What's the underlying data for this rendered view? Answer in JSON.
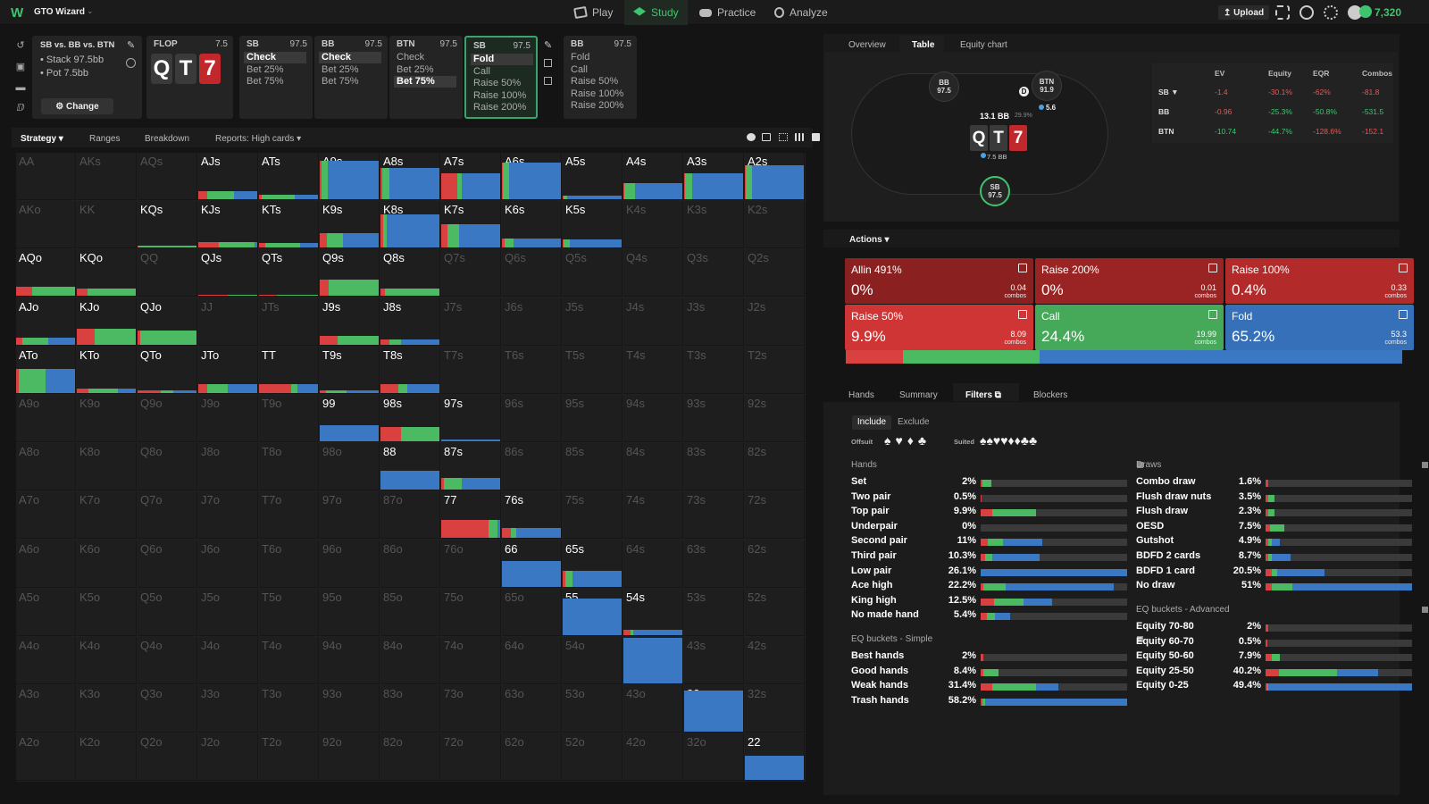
{
  "topnav": {
    "app_name": "GTO Wizard",
    "play": "Play",
    "study": "Study",
    "practice": "Practice",
    "analyze": "Analyze",
    "upload": "Upload",
    "credits": "7,320"
  },
  "spot": {
    "title": "SB vs. BB vs. BTN",
    "stack": "Stack 97.5bb",
    "pot": "Pot 7.5bb",
    "change": "Change"
  },
  "tree": [
    {
      "pos": "FLOP",
      "stack": "7.5",
      "cards": [
        "Q",
        "T",
        "7"
      ],
      "options": []
    },
    {
      "pos": "SB",
      "stack": "97.5",
      "options": [
        {
          "l": "Check",
          "on": true
        },
        {
          "l": "Bet 25%",
          "on": false
        },
        {
          "l": "Bet 75%",
          "on": false
        }
      ]
    },
    {
      "pos": "BB",
      "stack": "97.5",
      "options": [
        {
          "l": "Check",
          "on": true
        },
        {
          "l": "Bet 25%",
          "on": false
        },
        {
          "l": "Bet 75%",
          "on": false
        }
      ]
    },
    {
      "pos": "BTN",
      "stack": "97.5",
      "options": [
        {
          "l": "Check",
          "on": false
        },
        {
          "l": "Bet 25%",
          "on": false
        },
        {
          "l": "Bet 75%",
          "on": true
        }
      ]
    },
    {
      "pos": "SB",
      "stack": "97.5",
      "options": [
        {
          "l": "Fold",
          "on": true
        },
        {
          "l": "Call",
          "on": false
        },
        {
          "l": "Raise 50%",
          "on": false
        },
        {
          "l": "Raise 100%",
          "on": false
        },
        {
          "l": "Raise 200%",
          "on": false
        }
      ]
    },
    {
      "pos": "BB",
      "stack": "97.5",
      "options": [
        {
          "l": "Fold",
          "on": false
        },
        {
          "l": "Call",
          "on": false
        },
        {
          "l": "Raise 50%",
          "on": false
        },
        {
          "l": "Raise 100%",
          "on": false
        },
        {
          "l": "Raise 200%",
          "on": false
        }
      ]
    }
  ],
  "strategy_tabs": {
    "strategy": "Strategy",
    "ranges": "Ranges",
    "breakdown": "Breakdown",
    "reports": "Reports: High cards"
  },
  "colors": {
    "raise": "#d94040",
    "call": "#4cb963",
    "fold": "#3a78c4",
    "accent": "#3ec46d"
  },
  "grid": [
    [
      "AA",
      "AKs",
      "AQs",
      "AJs",
      "ATs",
      "A9s",
      "A8s",
      "A7s",
      "A6s",
      "A5s",
      "A4s",
      "A3s",
      "A2s"
    ],
    [
      "AKo",
      "KK",
      "KQs",
      "KJs",
      "KTs",
      "K9s",
      "K8s",
      "K7s",
      "K6s",
      "K5s",
      "K4s",
      "K3s",
      "K2s"
    ],
    [
      "AQo",
      "KQo",
      "QQ",
      "QJs",
      "QTs",
      "Q9s",
      "Q8s",
      "Q7s",
      "Q6s",
      "Q5s",
      "Q4s",
      "Q3s",
      "Q2s"
    ],
    [
      "AJo",
      "KJo",
      "QJo",
      "JJ",
      "JTs",
      "J9s",
      "J8s",
      "J7s",
      "J6s",
      "J5s",
      "J4s",
      "J3s",
      "J2s"
    ],
    [
      "ATo",
      "KTo",
      "QTo",
      "JTo",
      "TT",
      "T9s",
      "T8s",
      "T7s",
      "T6s",
      "T5s",
      "T4s",
      "T3s",
      "T2s"
    ],
    [
      "A9o",
      "K9o",
      "Q9o",
      "J9o",
      "T9o",
      "99",
      "98s",
      "97s",
      "96s",
      "95s",
      "94s",
      "93s",
      "92s"
    ],
    [
      "A8o",
      "K8o",
      "Q8o",
      "J8o",
      "T8o",
      "98o",
      "88",
      "87s",
      "86s",
      "85s",
      "84s",
      "83s",
      "82s"
    ],
    [
      "A7o",
      "K7o",
      "Q7o",
      "J7o",
      "T7o",
      "97o",
      "87o",
      "77",
      "76s",
      "75s",
      "74s",
      "73s",
      "72s"
    ],
    [
      "A6o",
      "K6o",
      "Q6o",
      "J6o",
      "T6o",
      "96o",
      "86o",
      "76o",
      "66",
      "65s",
      "64s",
      "63s",
      "62s"
    ],
    [
      "A5o",
      "K5o",
      "Q5o",
      "J5o",
      "T5o",
      "95o",
      "85o",
      "75o",
      "65o",
      "55",
      "54s",
      "53s",
      "52s"
    ],
    [
      "A4o",
      "K4o",
      "Q4o",
      "J4o",
      "T4o",
      "94o",
      "84o",
      "74o",
      "64o",
      "54o",
      "44",
      "43s",
      "42s"
    ],
    [
      "A3o",
      "K3o",
      "Q3o",
      "J3o",
      "T3o",
      "93o",
      "83o",
      "73o",
      "63o",
      "53o",
      "43o",
      "33",
      "32s"
    ],
    [
      "A2o",
      "K2o",
      "Q2o",
      "J2o",
      "T2o",
      "92o",
      "82o",
      "72o",
      "62o",
      "52o",
      "42o",
      "32o",
      "22"
    ]
  ],
  "cell_strats": {
    "AJs": {
      "h": 0.18,
      "r": 0.15,
      "c": 0.45,
      "f": 0.4
    },
    "ATs": {
      "h": 0.1,
      "r": 0.05,
      "c": 0.55,
      "f": 0.4
    },
    "A9s": {
      "h": 0.82,
      "r": 0.03,
      "c": 0.1,
      "f": 0.87
    },
    "A8s": {
      "h": 0.68,
      "r": 0.03,
      "c": 0.12,
      "f": 0.85
    },
    "A7s": {
      "h": 0.55,
      "r": 0.27,
      "c": 0.08,
      "f": 0.65
    },
    "A6s": {
      "h": 0.78,
      "r": 0.02,
      "c": 0.1,
      "f": 0.88
    },
    "A5s": {
      "h": 0.07,
      "r": 0.02,
      "c": 0.05,
      "f": 0.93
    },
    "A4s": {
      "h": 0.34,
      "r": 0.02,
      "c": 0.18,
      "f": 0.8
    },
    "A3s": {
      "h": 0.55,
      "r": 0.02,
      "c": 0.12,
      "f": 0.86
    },
    "A2s": {
      "h": 0.74,
      "r": 0.02,
      "c": 0.1,
      "f": 0.88
    },
    "KQs": {
      "h": 0.03,
      "r": 0.02,
      "c": 0.98,
      "f": 0.0
    },
    "KJs": {
      "h": 0.12,
      "r": 0.35,
      "c": 0.6,
      "f": 0.05
    },
    "KTs": {
      "h": 0.1,
      "r": 0.1,
      "c": 0.6,
      "f": 0.3
    },
    "K9s": {
      "h": 0.3,
      "r": 0.12,
      "c": 0.28,
      "f": 0.6
    },
    "K8s": {
      "h": 0.72,
      "r": 0.05,
      "c": 0.05,
      "f": 0.9
    },
    "K7s": {
      "h": 0.5,
      "r": 0.1,
      "c": 0.2,
      "f": 0.7
    },
    "K6s": {
      "h": 0.2,
      "r": 0.05,
      "c": 0.15,
      "f": 0.8
    },
    "K5s": {
      "h": 0.18,
      "r": 0.02,
      "c": 0.1,
      "f": 0.88
    },
    "AQo": {
      "h": 0.2,
      "r": 0.28,
      "c": 0.72,
      "f": 0.0
    },
    "KQo": {
      "h": 0.15,
      "r": 0.18,
      "c": 0.82,
      "f": 0.0
    },
    "QJs": {
      "h": 0.02,
      "r": 0.5,
      "c": 0.5,
      "f": 0.0
    },
    "QTs": {
      "h": 0.02,
      "r": 0.3,
      "c": 0.7,
      "f": 0.0
    },
    "Q9s": {
      "h": 0.35,
      "r": 0.15,
      "c": 0.85,
      "f": 0.0
    },
    "Q8s": {
      "h": 0.16,
      "r": 0.08,
      "c": 0.92,
      "f": 0.0
    },
    "AJo": {
      "h": 0.15,
      "r": 0.1,
      "c": 0.45,
      "f": 0.45
    },
    "KJo": {
      "h": 0.35,
      "r": 0.3,
      "c": 0.7,
      "f": 0.0
    },
    "QJo": {
      "h": 0.3,
      "r": 0.05,
      "c": 0.95,
      "f": 0.0
    },
    "J9s": {
      "h": 0.2,
      "r": 0.3,
      "c": 0.7,
      "f": 0.0
    },
    "J8s": {
      "h": 0.12,
      "r": 0.15,
      "c": 0.2,
      "f": 0.65
    },
    "ATo": {
      "h": 0.52,
      "r": 0.05,
      "c": 0.45,
      "f": 0.5
    },
    "KTo": {
      "h": 0.1,
      "r": 0.2,
      "c": 0.5,
      "f": 0.3
    },
    "QTo": {
      "h": 0.05,
      "r": 0.4,
      "c": 0.2,
      "f": 0.4
    },
    "JTo": {
      "h": 0.2,
      "r": 0.15,
      "c": 0.35,
      "f": 0.5
    },
    "TT": {
      "h": 0.2,
      "r": 0.55,
      "c": 0.1,
      "f": 0.35
    },
    "T9s": {
      "h": 0.05,
      "r": 0.1,
      "c": 0.35,
      "f": 0.55
    },
    "T8s": {
      "h": 0.2,
      "r": 0.3,
      "c": 0.15,
      "f": 0.55
    },
    "99": {
      "h": 0.35,
      "r": 0.0,
      "c": 0.0,
      "f": 1.0
    },
    "98s": {
      "h": 0.3,
      "r": 0.35,
      "c": 0.65,
      "f": 0.0
    },
    "97s": {
      "h": 0.04,
      "r": 0.0,
      "c": 0.0,
      "f": 1.0
    },
    "88": {
      "h": 0.4,
      "r": 0.0,
      "c": 0.0,
      "f": 1.0
    },
    "87s": {
      "h": 0.25,
      "r": 0.05,
      "c": 0.3,
      "f": 0.65
    },
    "77": {
      "h": 0.38,
      "r": 0.8,
      "c": 0.15,
      "f": 0.05
    },
    "76s": {
      "h": 0.22,
      "r": 0.15,
      "c": 0.1,
      "f": 0.75
    },
    "66": {
      "h": 0.55,
      "r": 0.0,
      "c": 0.0,
      "f": 1.0
    },
    "65s": {
      "h": 0.35,
      "r": 0.05,
      "c": 0.12,
      "f": 0.83
    },
    "55": {
      "h": 0.78,
      "r": 0.0,
      "c": 0.0,
      "f": 1.0
    },
    "54s": {
      "h": 0.12,
      "r": 0.12,
      "c": 0.05,
      "f": 0.83
    },
    "44": {
      "h": 0.98,
      "r": 0.0,
      "c": 0.0,
      "f": 1.0
    },
    "33": {
      "h": 0.88,
      "r": 0.0,
      "c": 0.0,
      "f": 1.0
    },
    "22": {
      "h": 0.52,
      "r": 0.0,
      "c": 0.0,
      "f": 1.0
    }
  },
  "active_hands": [
    "AJs",
    "ATs",
    "A9s",
    "A8s",
    "A7s",
    "A6s",
    "A5s",
    "A4s",
    "A3s",
    "A2s",
    "KQs",
    "KJs",
    "KTs",
    "K9s",
    "K8s",
    "K7s",
    "K6s",
    "K5s",
    "AQo",
    "KQo",
    "QJs",
    "QTs",
    "Q9s",
    "Q8s",
    "AJo",
    "KJo",
    "QJo",
    "J9s",
    "J8s",
    "ATo",
    "KTo",
    "QTo",
    "JTo",
    "TT",
    "T9s",
    "T8s",
    "99",
    "98s",
    "97s",
    "88",
    "87s",
    "77",
    "76s",
    "66",
    "65s",
    "55",
    "54s",
    "44",
    "33",
    "22"
  ],
  "right_tabs": {
    "overview": "Overview",
    "table": "Table",
    "equity_chart": "Equity chart"
  },
  "seats": {
    "bb": {
      "pos": "BB",
      "stack": "97.5"
    },
    "btn": {
      "pos": "BTN",
      "stack": "91.9"
    },
    "sb": {
      "pos": "SB",
      "stack": "97.5"
    },
    "pot": "13.1 BB",
    "pot_pct": "29.9%",
    "btn_bet": "5.6",
    "sb_bet": "7.5 BB",
    "dealer": "D"
  },
  "eq_table": {
    "headers": [
      "EV",
      "Equity",
      "EQR",
      "Combos"
    ],
    "rows": [
      {
        "pos": "SB ▼",
        "ev": "-1.4",
        "eq": "-30.1%",
        "eqr": "-62%",
        "combos": "-81.8",
        "color": "#e05a5a"
      },
      {
        "pos": "BB",
        "ev": "-0.96",
        "eq": "-25.3%",
        "eqr": "-50.8%",
        "combos": "-531.5",
        "color": "mixed"
      },
      {
        "pos": "BTN",
        "ev": "-10.74",
        "eq": "-44.7%",
        "eqr": "-128.6%",
        "combos": "-152.1",
        "color": "mixed"
      }
    ]
  },
  "actions_hdr": "Actions",
  "actions": [
    {
      "name": "Allin 491%",
      "pct": "0%",
      "combos": "0.04",
      "clabel": "combos",
      "bg": "#8a2020"
    },
    {
      "name": "Raise 200%",
      "pct": "0%",
      "combos": "0.01",
      "clabel": "combos",
      "bg": "#9a2323"
    },
    {
      "name": "Raise 100%",
      "pct": "0.4%",
      "combos": "0.33",
      "clabel": "combos",
      "bg": "#b32a2a"
    },
    {
      "name": "Raise 50%",
      "pct": "9.9%",
      "combos": "8.09",
      "clabel": "combos",
      "bg": "#d03535"
    },
    {
      "name": "Call",
      "pct": "24.4%",
      "combos": "19.99",
      "clabel": "combos",
      "bg": "#46a859"
    },
    {
      "name": "Fold",
      "pct": "65.2%",
      "combos": "53.3",
      "clabel": "combos",
      "bg": "#3570b8"
    }
  ],
  "overall": {
    "raise": 0.103,
    "call": 0.244,
    "fold": 0.652
  },
  "filter_tabs": {
    "hands": "Hands",
    "summary": "Summary",
    "filters": "Filters",
    "blockers": "Blockers"
  },
  "include": "Include",
  "exclude": "Exclude",
  "offsuit": "Offsuit",
  "suited": "Suited",
  "suits": [
    "♠",
    "♥",
    "♦",
    "♣"
  ],
  "hands_hdr": "Hands",
  "hands": [
    {
      "l": "Set",
      "p": "2%",
      "r": 0.015,
      "c": 0.06,
      "f": 0.0
    },
    {
      "l": "Two pair",
      "p": "0.5%",
      "r": 0.005,
      "c": 0.0,
      "f": 0.0
    },
    {
      "l": "Top pair",
      "p": "9.9%",
      "r": 0.08,
      "c": 0.3,
      "f": 0.0
    },
    {
      "l": "Underpair",
      "p": "0%",
      "r": 0.0,
      "c": 0.0,
      "f": 0.0
    },
    {
      "l": "Second pair",
      "p": "11%",
      "r": 0.05,
      "c": 0.1,
      "f": 0.27
    },
    {
      "l": "Third pair",
      "p": "10.3%",
      "r": 0.03,
      "c": 0.05,
      "f": 0.32
    },
    {
      "l": "Low pair",
      "p": "26.1%",
      "r": 0.0,
      "c": 0.0,
      "f": 1.0
    },
    {
      "l": "Ace high",
      "p": "22.2%",
      "r": 0.02,
      "c": 0.15,
      "f": 0.74
    },
    {
      "l": "King high",
      "p": "12.5%",
      "r": 0.09,
      "c": 0.2,
      "f": 0.2
    },
    {
      "l": "No made hand",
      "p": "5.4%",
      "r": 0.04,
      "c": 0.06,
      "f": 0.1
    }
  ],
  "eqs_hdr": "EQ buckets - Simple",
  "eqs": [
    {
      "l": "Best hands",
      "p": "2%",
      "r": 0.02,
      "c": 0.0,
      "f": 0.0
    },
    {
      "l": "Good hands",
      "p": "8.4%",
      "r": 0.02,
      "c": 0.1,
      "f": 0.0
    },
    {
      "l": "Weak hands",
      "p": "31.4%",
      "r": 0.08,
      "c": 0.3,
      "f": 0.15
    },
    {
      "l": "Trash hands",
      "p": "58.2%",
      "r": 0.01,
      "c": 0.02,
      "f": 0.97
    }
  ],
  "draws_hdr": "Draws",
  "draws": [
    {
      "l": "Combo draw",
      "p": "1.6%",
      "r": 0.02,
      "c": 0.0,
      "f": 0.0
    },
    {
      "l": "Flush draw nuts",
      "p": "3.5%",
      "r": 0.02,
      "c": 0.04,
      "f": 0.0
    },
    {
      "l": "Flush draw",
      "p": "2.3%",
      "r": 0.02,
      "c": 0.04,
      "f": 0.0
    },
    {
      "l": "OESD",
      "p": "7.5%",
      "r": 0.03,
      "c": 0.1,
      "f": 0.0
    },
    {
      "l": "Gutshot",
      "p": "4.9%",
      "r": 0.02,
      "c": 0.02,
      "f": 0.06
    },
    {
      "l": "BDFD 2 cards",
      "p": "8.7%",
      "r": 0.02,
      "c": 0.02,
      "f": 0.13
    },
    {
      "l": "BDFD 1 card",
      "p": "20.5%",
      "r": 0.04,
      "c": 0.04,
      "f": 0.32
    },
    {
      "l": "No draw",
      "p": "51%",
      "r": 0.04,
      "c": 0.14,
      "f": 0.82
    }
  ],
  "eqa_hdr": "EQ buckets - Advanced",
  "eqa": [
    {
      "l": "Equity 70-80",
      "p": "2%",
      "r": 0.02,
      "c": 0.0,
      "f": 0.0
    },
    {
      "l": "Equity 60-70",
      "p": "0.5%",
      "r": 0.01,
      "c": 0.0,
      "f": 0.0
    },
    {
      "l": "Equity 50-60",
      "p": "7.9%",
      "r": 0.04,
      "c": 0.06,
      "f": 0.0
    },
    {
      "l": "Equity 25-50",
      "p": "40.2%",
      "r": 0.09,
      "c": 0.4,
      "f": 0.28
    },
    {
      "l": "Equity 0-25",
      "p": "49.4%",
      "r": 0.01,
      "c": 0.01,
      "f": 0.98
    }
  ]
}
